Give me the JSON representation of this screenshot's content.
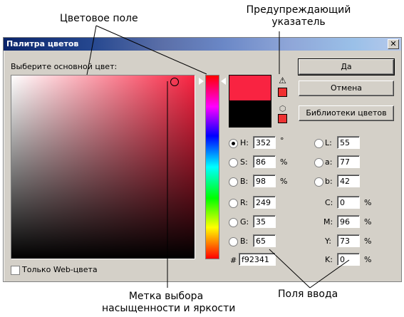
{
  "annotations": {
    "color_field": "Цветовое поле",
    "warning_indicator_line1": "Предупреждающий",
    "warning_indicator_line2": "указатель",
    "saturation_marker_line1": "Метка выбора",
    "saturation_marker_line2": "насыщенности и яркости",
    "input_fields": "Поля ввода"
  },
  "dialog": {
    "title": "Палитра цветов",
    "close_label": "✕",
    "prompt": "Выберите основной цвет:",
    "web_only_label": "Только Web-цвета",
    "web_only_checked": false
  },
  "buttons": {
    "ok": "Да",
    "cancel": "Отмена",
    "libraries": "Библиотеки цветов"
  },
  "icons": {
    "warning": "⚠",
    "cube": "⬡"
  },
  "colors": {
    "new_color": "#f92341",
    "old_color": "#000000",
    "gamut_warning_swatch": "#f03030",
    "web_warning_swatch": "#ee3333"
  },
  "fields": {
    "H": {
      "label": "H:",
      "value": "352",
      "unit": "°",
      "selected": true
    },
    "S": {
      "label": "S:",
      "value": "86",
      "unit": "%",
      "selected": false
    },
    "Bhsb": {
      "label": "B:",
      "value": "98",
      "unit": "%",
      "selected": false
    },
    "R": {
      "label": "R:",
      "value": "249",
      "selected": false
    },
    "G": {
      "label": "G:",
      "value": "35",
      "selected": false
    },
    "Brgb": {
      "label": "B:",
      "value": "65",
      "selected": false
    },
    "L": {
      "label": "L:",
      "value": "55",
      "selected": false
    },
    "a": {
      "label": "a:",
      "value": "77",
      "selected": false
    },
    "b": {
      "label": "b:",
      "value": "42",
      "selected": false
    },
    "C": {
      "label": "C:",
      "value": "0",
      "unit": "%"
    },
    "M": {
      "label": "M:",
      "value": "96",
      "unit": "%"
    },
    "Y": {
      "label": "Y:",
      "value": "73",
      "unit": "%"
    },
    "K": {
      "label": "K:",
      "value": "0",
      "unit": "%"
    },
    "hex": {
      "label": "#",
      "value": "f92341"
    }
  }
}
